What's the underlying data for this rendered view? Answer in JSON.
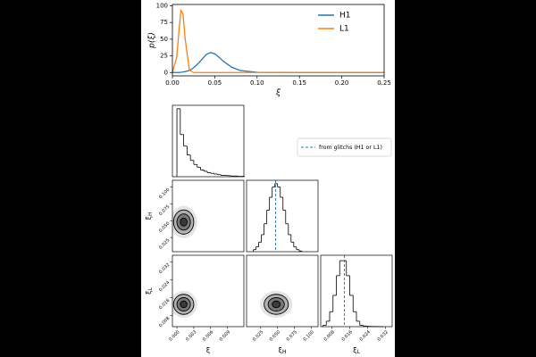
{
  "chart_data": [
    {
      "type": "line",
      "ylabel": "p(ξ)",
      "xlabel": "ξ",
      "x": [
        0,
        0.005,
        0.0075,
        0.01,
        0.0125,
        0.015,
        0.02,
        0.025,
        0.03,
        0.035,
        0.04,
        0.045,
        0.05,
        0.055,
        0.06,
        0.07,
        0.08,
        0.1,
        0.15,
        0.2,
        0.25
      ],
      "series": [
        {
          "name": "H1",
          "color": "#1f77b4",
          "values": [
            0,
            0,
            0.1,
            0.4,
            0.8,
            1.3,
            3,
            7,
            13,
            20,
            27,
            30,
            28,
            23,
            17,
            8,
            3,
            0.3,
            0,
            0,
            0
          ]
        },
        {
          "name": "L1",
          "color": "#ff7f0e",
          "values": [
            0.7,
            22,
            59,
            93,
            88,
            51,
            3.6,
            0,
            0,
            0,
            0,
            0,
            0,
            0,
            0,
            0,
            0,
            0,
            0,
            0,
            0
          ]
        }
      ],
      "xlim": [
        0,
        0.25
      ],
      "ylim": [
        -5,
        102
      ],
      "xticks": [
        {
          "value": 0,
          "label": "0.00"
        },
        0.05,
        {
          "value": 0.1,
          "label": "0.10"
        },
        0.15,
        {
          "value": 0.2,
          "label": "0.20"
        },
        0.25
      ],
      "yticks": [
        0,
        25,
        50,
        75,
        100
      ],
      "legend": "upper right"
    },
    {
      "type": "corner",
      "variables": [
        {
          "symbol": "ξ",
          "lim": [
            -0.0008,
            0.0119
          ],
          "ticks": [
            {
              "value": 0,
              "label": "0.000"
            },
            0.003,
            0.006,
            0.009
          ]
        },
        {
          "symbol": "ξ",
          "sub": "H",
          "lim": [
            0.004,
            0.11
          ],
          "ticks": [
            0.025,
            {
              "value": 0.05,
              "label": "0.050"
            },
            0.075,
            {
              "value": 0.1,
              "label": "0.100"
            }
          ]
        },
        {
          "symbol": "ξ",
          "sub": "L",
          "lim": [
            0.003,
            0.035
          ],
          "ticks": [
            0.008,
            0.016,
            0.024,
            0.032
          ]
        }
      ],
      "histograms": [
        {
          "bins": [
            0,
            0.0006,
            0.0012,
            0.0018,
            0.0024,
            0.003,
            0.0036,
            0.0042,
            0.0048,
            0.0054,
            0.006,
            0.0066,
            0.0072,
            0.0078,
            0.0084,
            0.009,
            0.0096,
            0.0102,
            0.0108,
            0.0114,
            0.012
          ],
          "counts": [
            100,
            62,
            45,
            32,
            24,
            18,
            14,
            10,
            8,
            6,
            5,
            4,
            3,
            2,
            2,
            1.5,
            1,
            1,
            0.5,
            0.5
          ],
          "ylim": [
            0,
            105
          ]
        },
        {
          "bins": [
            0.014,
            0.018,
            0.022,
            0.026,
            0.03,
            0.034,
            0.038,
            0.042,
            0.046,
            0.05,
            0.054,
            0.058,
            0.062,
            0.066,
            0.07,
            0.074,
            0.078,
            0.082,
            0.086
          ],
          "counts": [
            3,
            7,
            14,
            25,
            41,
            61,
            80,
            95,
            100,
            95,
            80,
            61,
            41,
            25,
            14,
            7,
            3,
            1
          ],
          "ylim": [
            0,
            105
          ]
        },
        {
          "bins": [
            0.004,
            0.0055,
            0.007,
            0.0085,
            0.01,
            0.0115,
            0.013,
            0.0145,
            0.016,
            0.0175,
            0.019,
            0.0205,
            0.022,
            0.0235,
            0.025,
            0.0265,
            0.028,
            0.0295,
            0.031
          ],
          "counts": [
            2,
            8,
            22,
            46,
            75,
            97,
            97,
            75,
            46,
            22,
            8,
            2,
            1,
            0.5,
            0.3,
            0.2,
            0.1,
            0
          ],
          "ylim": [
            0,
            105
          ]
        }
      ],
      "densities": [
        {
          "x": 0,
          "y": 1,
          "center": [
            0.0012,
            0.048
          ],
          "spread": [
            0.0012,
            0.012
          ]
        },
        {
          "x": 0,
          "y": 2,
          "center": [
            0.0012,
            0.013
          ],
          "spread": [
            0.0012,
            0.003
          ]
        },
        {
          "x": 1,
          "y": 2,
          "center": [
            0.048,
            0.013
          ],
          "spread": [
            0.012,
            0.003
          ]
        }
      ],
      "contour_levels": [
        2,
        1.5,
        1,
        0.5
      ],
      "reference": {
        "name": "from glitchs (H1 or L1)",
        "color": "#1f77b4",
        "values": [
          null,
          0.047,
          0.0136
        ]
      }
    }
  ]
}
